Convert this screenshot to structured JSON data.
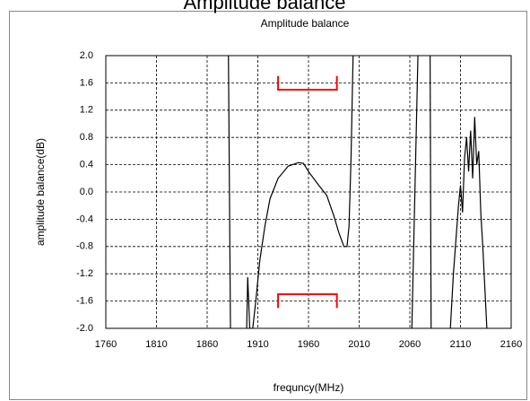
{
  "header_title": "Amplitude balance",
  "chart_data": {
    "type": "line",
    "title": "Amplitude balance",
    "xlabel": "frequncy(MHz)",
    "ylabel": "amplitude balance(dB)",
    "xlim": [
      1760,
      2160
    ],
    "xticks": [
      1760,
      1810,
      1860,
      1910,
      1960,
      2010,
      2060,
      2110,
      2160
    ],
    "ylim": [
      -2.0,
      2.0
    ],
    "yticks": [
      {
        "value": 2.0,
        "label": "2.0"
      },
      {
        "value": 1.6,
        "label": "1.6"
      },
      {
        "value": 1.2,
        "label": "1.2"
      },
      {
        "value": 0.8,
        "label": "0.8"
      },
      {
        "value": 0.4,
        "label": "0.4"
      },
      {
        "value": 0.0,
        "label": "0.0"
      },
      {
        "value": -0.4,
        "label": "-0.4"
      },
      {
        "value": -0.8,
        "label": "-0.8"
      },
      {
        "value": -1.2,
        "label": "-1.2"
      },
      {
        "value": -1.6,
        "label": "-1.6"
      },
      {
        "value": -2.0,
        "label": "-2.0"
      }
    ],
    "grid": true,
    "series": [
      {
        "color": "#000000",
        "x": [
          1881,
          1883,
          1890,
          1899,
          1900,
          1901,
          1902,
          1905,
          1908,
          1912,
          1917,
          1922,
          1930,
          1940,
          1950,
          1955,
          1960,
          1970,
          1978,
          1985,
          1990,
          1995,
          1998,
          2000,
          2002,
          2004,
          2005,
          2062,
          2065,
          2068,
          2070,
          2080,
          2081,
          2090,
          2100,
          2103,
          2106,
          2108,
          2110,
          2112,
          2114,
          2116,
          2118,
          2120,
          2122,
          2124,
          2126,
          2128,
          2130,
          2132,
          2134,
          2136
        ],
        "values": [
          2.0,
          -2.0,
          null,
          -2.0,
          -1.25,
          -1.6,
          -2.0,
          -2.0,
          -1.6,
          -1.0,
          -0.5,
          -0.1,
          0.2,
          0.38,
          0.43,
          0.42,
          0.3,
          0.1,
          -0.05,
          -0.35,
          -0.6,
          -0.8,
          -0.8,
          -0.5,
          0.5,
          2.0,
          null,
          -2.0,
          0.0,
          2.0,
          null,
          2.0,
          -2.0,
          null,
          -2.0,
          -1.2,
          -0.6,
          -0.2,
          0.1,
          -0.3,
          0.5,
          0.8,
          0.3,
          0.9,
          0.2,
          1.1,
          0.4,
          0.6,
          -0.3,
          -0.8,
          -1.4,
          -2.0
        ]
      },
      {
        "color": "#ff0000",
        "x": [
          1930,
          1930,
          1988,
          1988
        ],
        "values": [
          1.7,
          1.5,
          1.5,
          1.7
        ]
      },
      {
        "color": "#ff0000",
        "x": [
          1930,
          1930,
          1988,
          1988
        ],
        "values": [
          -1.7,
          -1.5,
          -1.5,
          -1.7
        ]
      }
    ]
  }
}
